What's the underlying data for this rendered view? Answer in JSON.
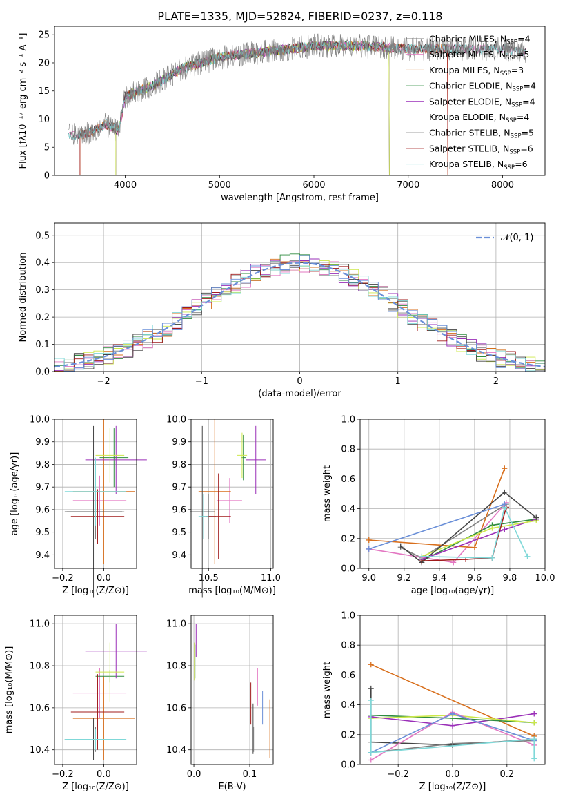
{
  "figure": {
    "title": "PLATE=1335, MJD=52824, FIBERID=0237, z=0.118"
  },
  "colors": {
    "Chabrier MILES": "#7f7f7f",
    "Salpeter MILES": "#e377c2",
    "Kroupa MILES": "#d86f1c",
    "Chabrier ELODIE": "#2e8b3f",
    "Salpeter ELODIE": "#9a2fb8",
    "Kroupa ELODIE": "#cde84a",
    "Chabrier STELIB": "#444444",
    "Salpeter STELIB": "#a11b1b",
    "Kroupa STELIB": "#7fd8d8",
    "normal": "#6a8fd8"
  },
  "legend": [
    {
      "label": "Chabrier MILES, N",
      "sub": "SSP",
      "tail": "=4",
      "color": "Chabrier MILES"
    },
    {
      "label": "Salpeter MILES, N",
      "sub": "SSP",
      "tail": "=5",
      "color": "Salpeter MILES"
    },
    {
      "label": "Kroupa MILES, N",
      "sub": "SSP",
      "tail": "=3",
      "color": "Kroupa MILES"
    },
    {
      "label": "Chabrier ELODIE, N",
      "sub": "SSP",
      "tail": "=4",
      "color": "Chabrier ELODIE"
    },
    {
      "label": "Salpeter ELODIE, N",
      "sub": "SSP",
      "tail": "=4",
      "color": "Salpeter ELODIE"
    },
    {
      "label": "Kroupa ELODIE, N",
      "sub": "SSP",
      "tail": "=4",
      "color": "Kroupa ELODIE"
    },
    {
      "label": "Chabrier STELIB, N",
      "sub": "SSP",
      "tail": "=5",
      "color": "Chabrier STELIB"
    },
    {
      "label": "Salpeter STELIB, N",
      "sub": "SSP",
      "tail": "=6",
      "color": "Salpeter STELIB"
    },
    {
      "label": "Kroupa STELIB, N",
      "sub": "SSP",
      "tail": "=6",
      "color": "Kroupa STELIB"
    }
  ],
  "chart_data": [
    {
      "id": "spectrum",
      "type": "line",
      "xlabel": "wavelength [Angstrom, rest frame]",
      "ylabel": "Flux [fλ10⁻¹⁷ erg cm⁻² s⁻¹ A⁻¹]",
      "xlim": [
        3250,
        8450
      ],
      "ylim": [
        0,
        26.5
      ],
      "xticks": [
        4000,
        5000,
        6000,
        7000,
        8000
      ],
      "yticks": [
        0,
        5,
        10,
        15,
        20,
        25
      ],
      "x_range_data": [
        3400,
        8250
      ],
      "continuum": [
        [
          3400,
          7.0
        ],
        [
          3600,
          7.5
        ],
        [
          3800,
          9.0
        ],
        [
          3930,
          8.0
        ],
        [
          4000,
          14.0
        ],
        [
          4300,
          16.0
        ],
        [
          4600,
          19.0
        ],
        [
          5000,
          21.0
        ],
        [
          5500,
          22.0
        ],
        [
          6000,
          23.0
        ],
        [
          6500,
          23.0
        ],
        [
          7000,
          22.5
        ],
        [
          7500,
          22.5
        ],
        [
          8000,
          22.5
        ],
        [
          8250,
          22.0
        ]
      ],
      "model_edges": [
        [
          3520,
          7420
        ],
        [
          3900,
          6800
        ],
        [
          3400,
          8250
        ]
      ],
      "grid": false
    },
    {
      "id": "residuals",
      "type": "histogram",
      "xlabel": "(data-model)/error",
      "ylabel": "Normed distribution",
      "xlim": [
        -2.5,
        2.5
      ],
      "ylim": [
        0,
        0.545
      ],
      "xticks": [
        -2,
        -1,
        0,
        1,
        2
      ],
      "yticks": [
        0.0,
        0.1,
        0.2,
        0.3,
        0.4,
        0.5
      ],
      "bin_width": 0.1,
      "curve_label": "𝒩(0, 1)",
      "grid": true,
      "legend_position": "top-right"
    },
    {
      "id": "age-vs-Z",
      "type": "scatter",
      "xlabel": "Z [log₁₀(Z/Z⊙)]",
      "ylabel": "age  [log₁₀(age/yr)]",
      "xlim": [
        -0.24,
        0.16
      ],
      "ylim": [
        9.34,
        10.0
      ],
      "xticks": [
        -0.2,
        0.0
      ],
      "yticks": [
        9.4,
        9.5,
        9.6,
        9.7,
        9.8,
        9.9,
        10.0
      ],
      "points": [
        {
          "c": "Chabrier MILES",
          "x": -0.04,
          "xe": 0.14,
          "y": 9.59,
          "ye": 0.12
        },
        {
          "c": "Salpeter MILES",
          "x": -0.02,
          "xe": 0.13,
          "y": 9.64,
          "ye": 0.11
        },
        {
          "c": "Kroupa MILES",
          "x": 0.0,
          "xe": 0.15,
          "y": 9.68,
          "ye": 0.32
        },
        {
          "c": "Chabrier ELODIE",
          "x": 0.05,
          "xe": 0.07,
          "y": 9.83,
          "ye": 0.13
        },
        {
          "c": "Salpeter ELODIE",
          "x": 0.06,
          "xe": 0.15,
          "y": 9.82,
          "ye": 0.15
        },
        {
          "c": "Kroupa ELODIE",
          "x": 0.03,
          "xe": 0.07,
          "y": 9.84,
          "ye": 0.12
        },
        {
          "c": "Chabrier STELIB",
          "x": -0.05,
          "xe": 0.14,
          "y": 9.59,
          "ye": 0.38
        },
        {
          "c": "Salpeter STELIB",
          "x": -0.03,
          "xe": 0.13,
          "y": 9.57,
          "ye": 0.12
        },
        {
          "c": "Kroupa STELIB",
          "x": -0.04,
          "xe": 0.15,
          "y": 9.68,
          "ye": 0.15
        }
      ],
      "grid": true
    },
    {
      "id": "age-vs-mass",
      "type": "scatter",
      "xlabel": "mass [log₁₀(M/M⊙)]",
      "ylabel": "",
      "xlim": [
        10.36,
        11.02
      ],
      "ylim": [
        9.34,
        10.0
      ],
      "xticks": [
        10.5,
        11.0
      ],
      "yticks": [
        9.4,
        9.5,
        9.6,
        9.7,
        9.8,
        9.9,
        10.0
      ],
      "points": [
        {
          "c": "Chabrier MILES",
          "x": 10.5,
          "xe": 0.06,
          "y": 9.57,
          "ye": 0.1
        },
        {
          "c": "Salpeter MILES",
          "x": 10.67,
          "xe": 0.1,
          "y": 9.64,
          "ye": 0.1
        },
        {
          "c": "Kroupa MILES",
          "x": 10.55,
          "xe": 0.13,
          "y": 9.68,
          "ye": 0.32
        },
        {
          "c": "Chabrier ELODIE",
          "x": 10.78,
          "xe": 0.02,
          "y": 9.83,
          "ye": 0.1
        },
        {
          "c": "Salpeter ELODIE",
          "x": 10.88,
          "xe": 0.08,
          "y": 9.82,
          "ye": 0.15
        },
        {
          "c": "Kroupa ELODIE",
          "x": 10.77,
          "xe": 0.04,
          "y": 9.84,
          "ye": 0.1
        },
        {
          "c": "Chabrier STELIB",
          "x": 10.45,
          "xe": 0.1,
          "y": 9.59,
          "ye": 0.38
        },
        {
          "c": "Salpeter STELIB",
          "x": 10.58,
          "xe": 0.1,
          "y": 9.57,
          "ye": 0.19
        },
        {
          "c": "Kroupa STELIB",
          "x": 10.46,
          "xe": 0.04,
          "y": 9.57,
          "ye": 0.1
        }
      ],
      "grid": true
    },
    {
      "id": "weight-vs-age",
      "type": "line",
      "xlabel": "age  [log₁₀(age/yr)]",
      "ylabel": "mass weight",
      "xlim": [
        8.95,
        10.0
      ],
      "ylim": [
        0,
        1.0
      ],
      "xticks": [
        9.0,
        9.2,
        9.4,
        9.6,
        9.8,
        10.0
      ],
      "yticks": [
        0.0,
        0.2,
        0.4,
        0.6,
        0.8,
        1.0
      ],
      "series": [
        {
          "c": "Chabrier MILES",
          "x": [
            9.18,
            9.3,
            9.78
          ],
          "y": [
            0.14,
            0.07,
            0.43
          ]
        },
        {
          "c": "Salpeter MILES",
          "x": [
            9.0,
            9.48,
            9.78
          ],
          "y": [
            0.13,
            0.04,
            0.44
          ]
        },
        {
          "c": "Kroupa MILES",
          "x": [
            9.0,
            9.6,
            9.77
          ],
          "y": [
            0.19,
            0.14,
            0.67
          ]
        },
        {
          "c": "Chabrier ELODIE",
          "x": [
            9.3,
            9.7,
            9.95
          ],
          "y": [
            0.05,
            0.29,
            0.33
          ]
        },
        {
          "c": "Salpeter ELODIE",
          "x": [
            9.3,
            9.77,
            9.95
          ],
          "y": [
            0.06,
            0.26,
            0.33
          ]
        },
        {
          "c": "Kroupa ELODIE",
          "x": [
            9.3,
            9.7,
            9.95
          ],
          "y": [
            0.08,
            0.27,
            0.32
          ]
        },
        {
          "c": "Chabrier STELIB",
          "x": [
            9.18,
            9.3,
            9.77,
            9.95
          ],
          "y": [
            0.15,
            0.04,
            0.51,
            0.34
          ]
        },
        {
          "c": "Salpeter STELIB",
          "x": [
            9.3,
            9.55,
            9.7,
            9.78
          ],
          "y": [
            0.05,
            0.06,
            0.07,
            0.41
          ]
        },
        {
          "c": "Kroupa STELIB",
          "x": [
            9.3,
            9.7,
            9.77,
            9.9
          ],
          "y": [
            0.08,
            0.07,
            0.41,
            0.08
          ]
        },
        {
          "c": "normal",
          "x": [
            9.0,
            9.77
          ],
          "y": [
            0.13,
            0.43
          ]
        }
      ],
      "grid": true
    },
    {
      "id": "mass-vs-Z",
      "type": "scatter",
      "xlabel": "Z [log₁₀(Z/Z⊙)]",
      "ylabel": "mass [log₁₀(M/M⊙)]",
      "xlim": [
        -0.24,
        0.16
      ],
      "ylim": [
        10.33,
        11.04
      ],
      "xticks": [
        -0.2,
        0.0
      ],
      "yticks": [
        10.4,
        10.6,
        10.8,
        11.0
      ],
      "points": [
        {
          "c": "Chabrier MILES",
          "x": -0.04,
          "xe": 0.14,
          "y": 10.45,
          "ye": 0.06
        },
        {
          "c": "Salpeter MILES",
          "x": -0.02,
          "xe": 0.13,
          "y": 10.67,
          "ye": 0.12
        },
        {
          "c": "Kroupa MILES",
          "x": 0.0,
          "xe": 0.15,
          "y": 10.55,
          "ye": 0.2
        },
        {
          "c": "Chabrier ELODIE",
          "x": 0.03,
          "xe": 0.07,
          "y": 10.75,
          "ye": 0.03
        },
        {
          "c": "Salpeter ELODIE",
          "x": 0.06,
          "xe": 0.15,
          "y": 10.87,
          "ye": 0.13
        },
        {
          "c": "Kroupa ELODIE",
          "x": 0.03,
          "xe": 0.07,
          "y": 10.77,
          "ye": 0.14
        },
        {
          "c": "Chabrier STELIB",
          "x": -0.05,
          "xe": 0.14,
          "y": 10.45,
          "ye": 0.1
        },
        {
          "c": "Salpeter STELIB",
          "x": -0.03,
          "xe": 0.13,
          "y": 10.58,
          "ye": 0.18
        },
        {
          "c": "Kroupa STELIB",
          "x": -0.04,
          "xe": 0.15,
          "y": 10.45,
          "ye": 0.05
        }
      ],
      "grid": true
    },
    {
      "id": "mass-vs-ebv",
      "type": "scatter",
      "xlabel": "E(B-V)",
      "ylabel": "",
      "xlim": [
        -0.005,
        0.142
      ],
      "ylim": [
        10.33,
        11.04
      ],
      "xticks": [
        0.0,
        0.1
      ],
      "yticks": [
        10.4,
        10.6,
        10.8,
        11.0
      ],
      "points": [
        {
          "c": "Kroupa ELODIE",
          "x": 0.001,
          "y": 10.82,
          "ye": 0.09
        },
        {
          "c": "Chabrier ELODIE",
          "x": 0.002,
          "y": 10.82,
          "ye": 0.08
        },
        {
          "c": "Salpeter ELODIE",
          "x": 0.004,
          "y": 10.92,
          "ye": 0.08
        },
        {
          "c": "Salpeter STELIB",
          "x": 0.102,
          "y": 10.62,
          "ye": 0.1
        },
        {
          "c": "Chabrier STELIB",
          "x": 0.106,
          "y": 10.5,
          "ye": 0.12
        },
        {
          "c": "Chabrier MILES",
          "x": 0.107,
          "y": 10.45,
          "ye": 0.06
        },
        {
          "c": "Salpeter MILES",
          "x": 0.114,
          "y": 10.7,
          "ye": 0.09
        },
        {
          "c": "normal",
          "x": 0.123,
          "y": 10.6,
          "ye": 0.08
        },
        {
          "c": "Kroupa MILES",
          "x": 0.136,
          "y": 10.5,
          "ye": 0.14
        }
      ],
      "grid": true
    },
    {
      "id": "weight-vs-Z",
      "type": "line",
      "xlabel": "Z [log₁₀(Z/Z⊙)]",
      "ylabel": "mass weight",
      "xlim": [
        -0.34,
        0.34
      ],
      "ylim": [
        0,
        1.0
      ],
      "xticks": [
        -0.2,
        0.0,
        0.2
      ],
      "yticks": [
        0.0,
        0.2,
        0.4,
        0.6,
        0.8,
        1.0
      ],
      "series": [
        {
          "c": "Kroupa MILES",
          "x": [
            -0.3,
            0.3
          ],
          "y": [
            0.67,
            0.19
          ]
        },
        {
          "c": "Salpeter ELODIE",
          "x": [
            -0.3,
            0.0,
            0.3
          ],
          "y": [
            0.32,
            0.26,
            0.34
          ]
        },
        {
          "c": "Chabrier ELODIE",
          "x": [
            -0.3,
            0.0,
            0.3
          ],
          "y": [
            0.33,
            0.31,
            0.28
          ]
        },
        {
          "c": "Kroupa ELODIE",
          "x": [
            -0.3,
            0.0,
            0.3
          ],
          "y": [
            0.31,
            0.33,
            0.28
          ]
        },
        {
          "c": "Chabrier STELIB",
          "x": [
            -0.3,
            -0.3,
            0.0,
            0.3
          ],
          "y": [
            0.51,
            0.15,
            0.13,
            0.17
          ]
        },
        {
          "c": "Salpeter MILES",
          "x": [
            -0.3,
            0.0,
            0.3
          ],
          "y": [
            0.03,
            0.35,
            0.13
          ]
        },
        {
          "c": "Chabrier MILES",
          "x": [
            -0.3,
            0.0,
            0.3
          ],
          "y": [
            0.08,
            0.14,
            0.16
          ]
        },
        {
          "c": "normal",
          "x": [
            -0.3,
            0.0,
            0.3
          ],
          "y": [
            0.08,
            0.34,
            0.16
          ]
        },
        {
          "c": "Kroupa STELIB",
          "x": [
            -0.3,
            -0.3,
            0.3,
            0.3
          ],
          "y": [
            0.43,
            0.08,
            0.17,
            0.04
          ]
        }
      ],
      "grid": true
    }
  ]
}
